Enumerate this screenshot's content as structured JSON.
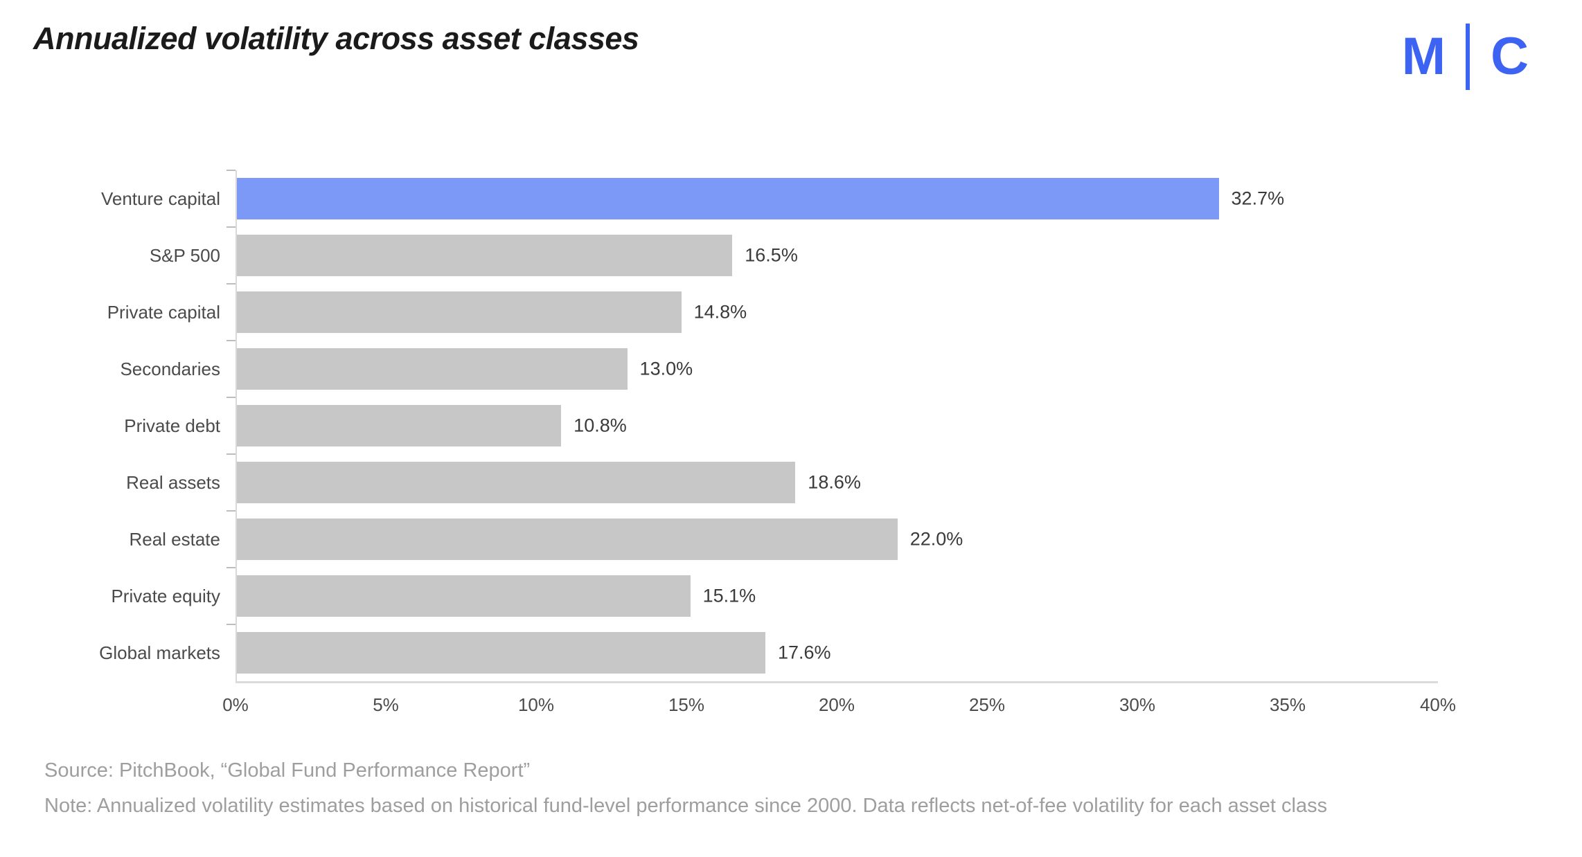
{
  "header": {
    "title": "Annualized volatility across asset classes",
    "logo": {
      "left": "M",
      "right": "C",
      "color": "#3D63F3"
    }
  },
  "chart_data": {
    "type": "bar",
    "orientation": "horizontal",
    "title": "Annualized volatility across asset classes",
    "categories": [
      "Venture capital",
      "S&P 500",
      "Private capital",
      "Secondaries",
      "Private debt",
      "Real assets",
      "Real estate",
      "Private equity",
      "Global markets"
    ],
    "values": [
      32.7,
      16.5,
      14.8,
      13.0,
      10.8,
      18.6,
      22.0,
      15.1,
      17.6
    ],
    "value_labels": [
      "32.7%",
      "16.5%",
      "14.8%",
      "13.0%",
      "10.8%",
      "18.6%",
      "22.0%",
      "15.1%",
      "17.6%"
    ],
    "highlight_index": 0,
    "highlight_category": "Venture capital",
    "colors": {
      "highlight": "#7D99F7",
      "default": "#C7C7C7"
    },
    "xlim": [
      0,
      40
    ],
    "x_ticks": [
      "0%",
      "5%",
      "10%",
      "15%",
      "20%",
      "25%",
      "30%",
      "35%",
      "40%"
    ],
    "xlabel": "",
    "ylabel": "",
    "grid": false,
    "legend": false
  },
  "footer": {
    "source": "Source: PitchBook, “Global Fund Performance Report”",
    "note": "Note: Annualized volatility estimates based on historical fund-level performance since 2000. Data reflects net-of-fee volatility for each asset class"
  }
}
